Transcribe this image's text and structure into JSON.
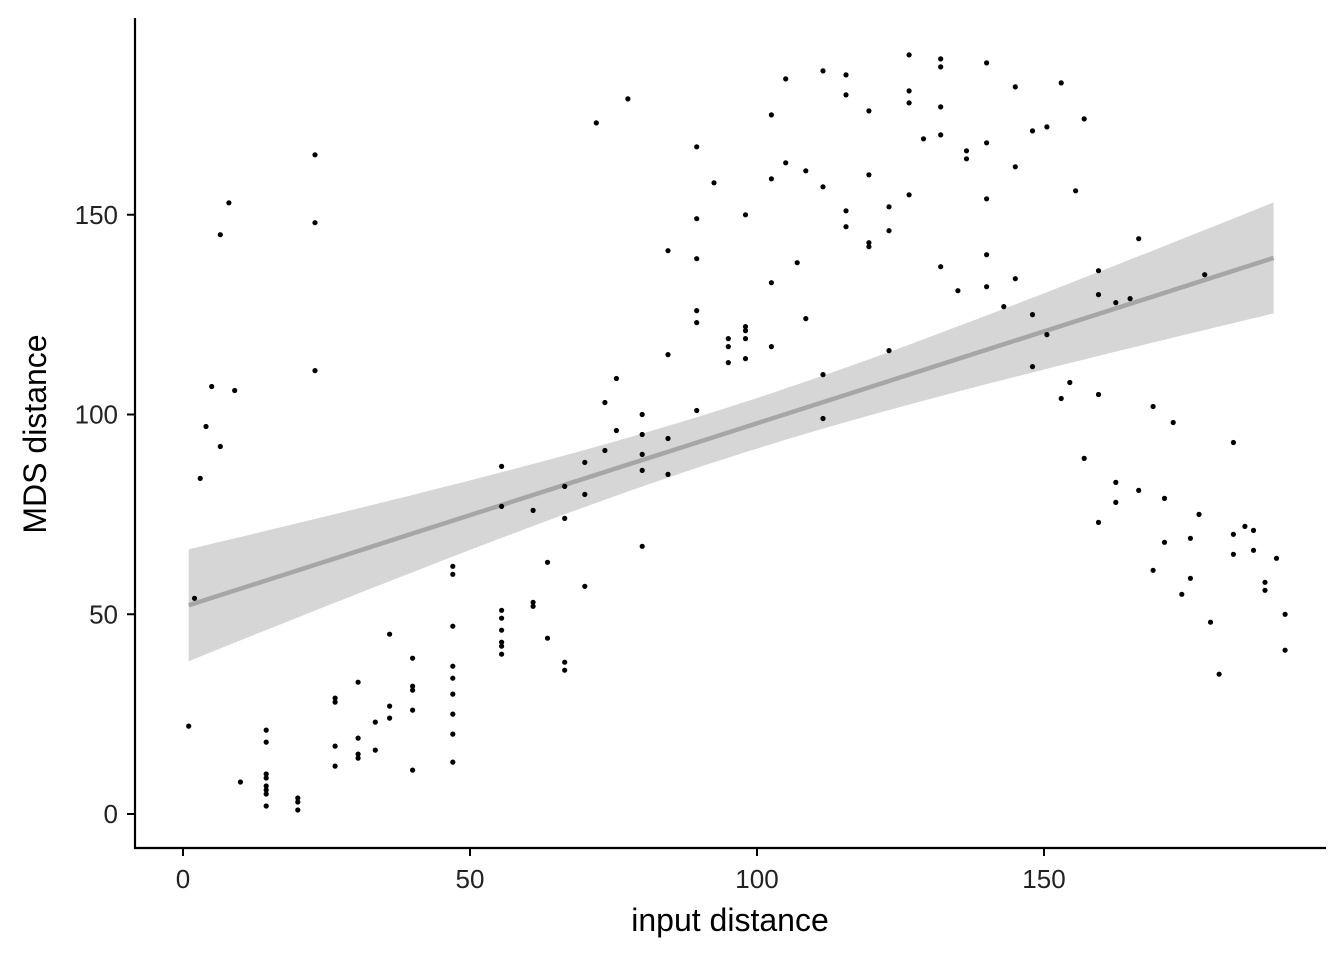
{
  "chart_data": {
    "type": "scatter",
    "title": "",
    "xlabel": "input distance",
    "ylabel": "MDS distance",
    "xlim": [
      -8.5,
      198
    ],
    "ylim": [
      -8.5,
      199
    ],
    "x_ticks": [
      0,
      50,
      100,
      150
    ],
    "y_ticks": [
      0,
      50,
      100,
      150
    ],
    "grid": false,
    "legend": "none",
    "colors": {
      "points": "#000000",
      "fit_line": "#a6a6a6",
      "confidence_band": "#d6d6d6",
      "axis": "#000000"
    },
    "series": [
      {
        "points": [
          [
            1,
            22
          ],
          [
            2,
            54
          ],
          [
            3,
            84
          ],
          [
            4,
            97
          ],
          [
            5,
            107
          ],
          [
            6.5,
            145
          ],
          [
            6.5,
            92
          ],
          [
            8,
            153
          ],
          [
            9,
            106
          ],
          [
            10,
            8
          ],
          [
            14.5,
            21
          ],
          [
            14.5,
            18
          ],
          [
            14.5,
            10
          ],
          [
            14.5,
            9
          ],
          [
            14.5,
            7
          ],
          [
            14.5,
            6
          ],
          [
            14.5,
            5
          ],
          [
            14.5,
            2
          ],
          [
            20,
            4
          ],
          [
            20,
            3
          ],
          [
            20,
            1
          ],
          [
            23,
            165
          ],
          [
            23,
            148
          ],
          [
            23,
            111
          ],
          [
            26.5,
            29
          ],
          [
            26.5,
            28
          ],
          [
            26.5,
            17
          ],
          [
            26.5,
            12
          ],
          [
            30.5,
            33
          ],
          [
            30.5,
            19
          ],
          [
            30.5,
            15
          ],
          [
            30.5,
            14
          ],
          [
            33.5,
            23
          ],
          [
            33.5,
            16
          ],
          [
            36,
            45
          ],
          [
            36,
            27
          ],
          [
            36,
            24
          ],
          [
            40,
            39
          ],
          [
            40,
            32
          ],
          [
            40,
            31
          ],
          [
            40,
            26
          ],
          [
            40,
            11
          ],
          [
            47,
            62
          ],
          [
            47,
            60
          ],
          [
            47,
            47
          ],
          [
            47,
            37
          ],
          [
            47,
            34
          ],
          [
            47,
            30
          ],
          [
            47,
            25
          ],
          [
            47,
            20
          ],
          [
            47,
            13
          ],
          [
            55.5,
            87
          ],
          [
            55.5,
            77
          ],
          [
            55.5,
            51
          ],
          [
            55.5,
            49
          ],
          [
            55.5,
            46
          ],
          [
            55.5,
            43
          ],
          [
            55.5,
            42
          ],
          [
            55.5,
            40
          ],
          [
            61,
            76
          ],
          [
            61,
            53
          ],
          [
            61,
            52
          ],
          [
            63.5,
            63
          ],
          [
            63.5,
            44
          ],
          [
            66.5,
            82
          ],
          [
            66.5,
            74
          ],
          [
            66.5,
            38
          ],
          [
            66.5,
            36
          ],
          [
            70,
            88
          ],
          [
            70,
            80
          ],
          [
            70,
            57
          ],
          [
            72,
            173
          ],
          [
            73.5,
            103
          ],
          [
            73.5,
            91
          ],
          [
            75.5,
            109
          ],
          [
            75.5,
            96
          ],
          [
            77.5,
            179
          ],
          [
            80,
            100
          ],
          [
            80,
            95
          ],
          [
            80,
            90
          ],
          [
            80,
            86
          ],
          [
            80,
            67
          ],
          [
            84.5,
            141
          ],
          [
            84.5,
            115
          ],
          [
            84.5,
            94
          ],
          [
            84.5,
            85
          ],
          [
            89.5,
            167
          ],
          [
            89.5,
            149
          ],
          [
            89.5,
            139
          ],
          [
            89.5,
            126
          ],
          [
            89.5,
            123
          ],
          [
            89.5,
            101
          ],
          [
            92.5,
            158
          ],
          [
            95,
            119
          ],
          [
            95,
            117
          ],
          [
            95,
            113
          ],
          [
            98,
            150
          ],
          [
            98,
            122
          ],
          [
            98,
            121
          ],
          [
            98,
            119
          ],
          [
            98,
            114
          ],
          [
            102.5,
            175
          ],
          [
            102.5,
            159
          ],
          [
            102.5,
            133
          ],
          [
            102.5,
            117
          ],
          [
            105,
            184
          ],
          [
            105,
            163
          ],
          [
            107,
            138
          ],
          [
            108.5,
            161
          ],
          [
            108.5,
            124
          ],
          [
            111.5,
            186
          ],
          [
            111.5,
            157
          ],
          [
            111.5,
            110
          ],
          [
            111.5,
            99
          ],
          [
            115.5,
            185
          ],
          [
            115.5,
            180
          ],
          [
            115.5,
            151
          ],
          [
            115.5,
            147
          ],
          [
            119.5,
            176
          ],
          [
            119.5,
            160
          ],
          [
            119.5,
            143
          ],
          [
            119.5,
            142
          ],
          [
            123,
            152
          ],
          [
            123,
            146
          ],
          [
            123,
            116
          ],
          [
            126.5,
            190
          ],
          [
            126.5,
            181
          ],
          [
            126.5,
            178
          ],
          [
            126.5,
            155
          ],
          [
            129,
            169
          ],
          [
            132,
            189
          ],
          [
            132,
            187
          ],
          [
            132,
            177
          ],
          [
            132,
            170
          ],
          [
            132,
            137
          ],
          [
            135,
            131
          ],
          [
            136.5,
            166
          ],
          [
            136.5,
            164
          ],
          [
            140,
            188
          ],
          [
            140,
            168
          ],
          [
            140,
            154
          ],
          [
            140,
            140
          ],
          [
            140,
            132
          ],
          [
            143,
            127
          ],
          [
            145,
            182
          ],
          [
            145,
            162
          ],
          [
            145,
            134
          ],
          [
            148,
            171
          ],
          [
            148,
            125
          ],
          [
            148,
            112
          ],
          [
            150.5,
            172
          ],
          [
            150.5,
            120
          ],
          [
            153,
            183
          ],
          [
            153,
            104
          ],
          [
            154.5,
            108
          ],
          [
            155.5,
            156
          ],
          [
            157,
            174
          ],
          [
            157,
            89
          ],
          [
            159.5,
            136
          ],
          [
            159.5,
            130
          ],
          [
            159.5,
            105
          ],
          [
            159.5,
            73
          ],
          [
            162.5,
            128
          ],
          [
            162.5,
            83
          ],
          [
            162.5,
            78
          ],
          [
            165,
            129
          ],
          [
            166.5,
            144
          ],
          [
            166.5,
            81
          ],
          [
            169,
            102
          ],
          [
            169,
            61
          ],
          [
            171,
            79
          ],
          [
            171,
            68
          ],
          [
            172.5,
            98
          ],
          [
            174,
            55
          ],
          [
            175.5,
            69
          ],
          [
            175.5,
            59
          ],
          [
            177,
            75
          ],
          [
            178,
            135
          ],
          [
            179,
            48
          ],
          [
            180.5,
            35
          ],
          [
            183,
            93
          ],
          [
            183,
            70
          ],
          [
            183,
            65
          ],
          [
            185,
            72
          ],
          [
            186.5,
            71
          ],
          [
            186.5,
            66
          ],
          [
            188.5,
            58
          ],
          [
            188.5,
            56
          ],
          [
            190.5,
            64
          ],
          [
            192,
            50
          ],
          [
            192,
            41
          ]
        ]
      }
    ],
    "fit": {
      "method": "linear",
      "x_range": [
        1,
        190
      ],
      "intercept": 51.8,
      "slope": 0.46,
      "ci_lower": [
        [
          1,
          37.8
        ],
        [
          190,
          124.8
        ]
      ],
      "ci_upper": [
        [
          1,
          65.8
        ],
        [
          190,
          152.6
        ]
      ]
    }
  }
}
